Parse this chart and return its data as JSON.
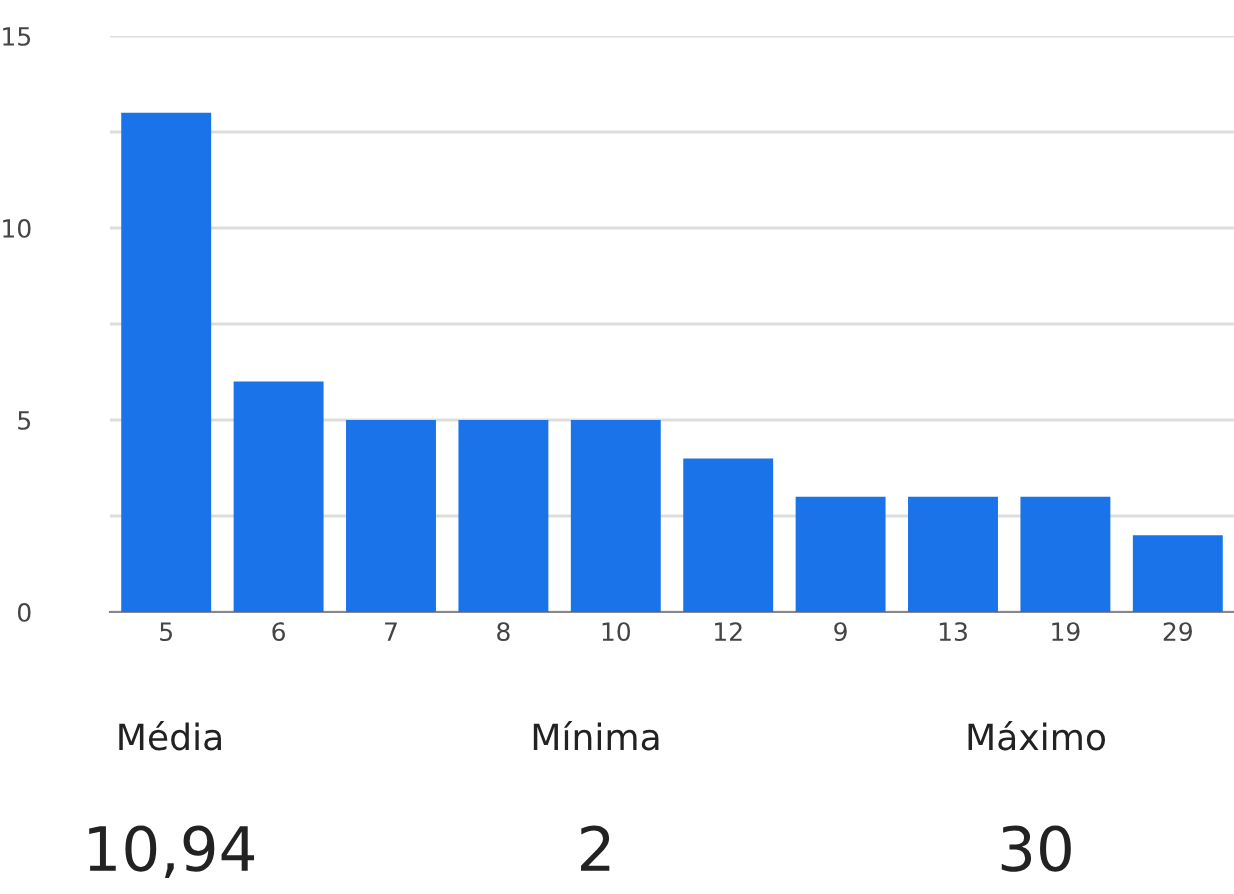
{
  "chart_data": {
    "type": "bar",
    "categories": [
      "5",
      "6",
      "7",
      "8",
      "10",
      "12",
      "9",
      "13",
      "19",
      "29"
    ],
    "values": [
      13,
      6,
      5,
      5,
      5,
      4,
      3,
      3,
      3,
      2
    ],
    "color": "#1a73e8",
    "ylim": [
      0,
      15
    ],
    "yticks": [
      0,
      {
        "value": 2.5,
        "label": null
      },
      5,
      {
        "value": 7.5,
        "label": null
      },
      10,
      {
        "value": 12.5,
        "label": null
      },
      15
    ],
    "grid": "y",
    "annotations": [
      "Média",
      "Mínima",
      "Máximo",
      "10,94",
      "2",
      "30"
    ]
  }
}
